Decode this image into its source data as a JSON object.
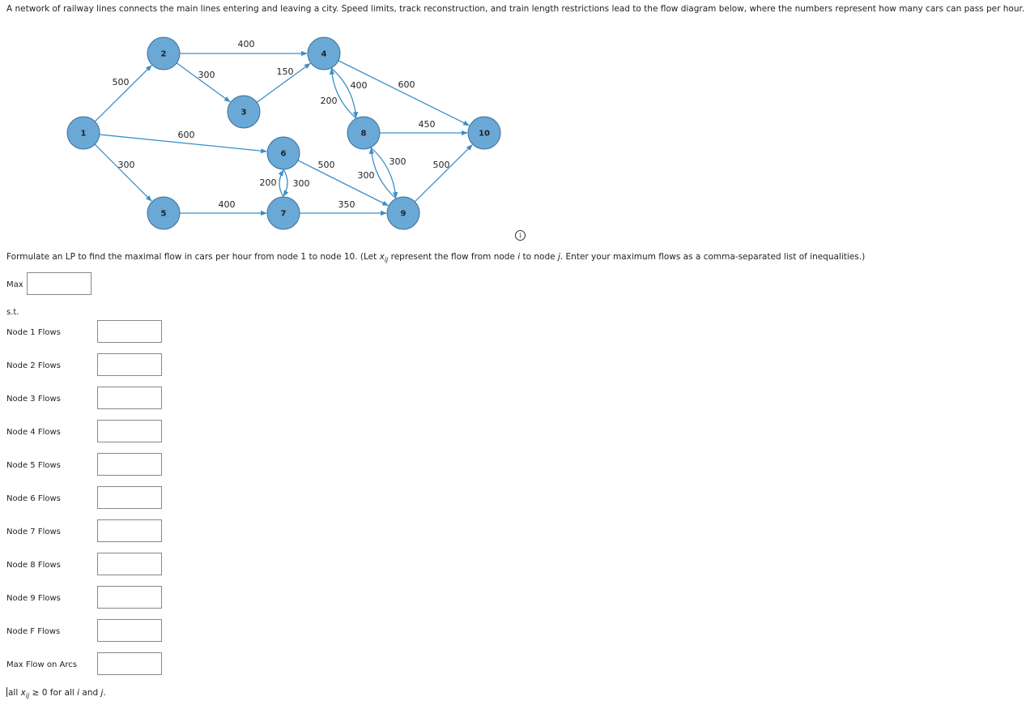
{
  "intro": "A network of railway lines connects the main lines entering and leaving a city. Speed limits, track reconstruction, and train length restrictions lead to the flow diagram below, where the numbers represent how many cars can pass per hour.",
  "colors": {
    "node_fill": "#6aa8d6",
    "node_stroke": "#3d6f96",
    "edge": "#3a8fc9"
  },
  "network": {
    "nodes": [
      {
        "id": "1"
      },
      {
        "id": "2"
      },
      {
        "id": "3"
      },
      {
        "id": "4"
      },
      {
        "id": "5"
      },
      {
        "id": "6"
      },
      {
        "id": "7"
      },
      {
        "id": "8"
      },
      {
        "id": "9"
      },
      {
        "id": "10"
      }
    ],
    "edges": [
      {
        "from": "1",
        "to": "2",
        "capacity": "500"
      },
      {
        "from": "1",
        "to": "5",
        "capacity": "300"
      },
      {
        "from": "1",
        "to": "6",
        "capacity": "600"
      },
      {
        "from": "2",
        "to": "4",
        "capacity": "400"
      },
      {
        "from": "2",
        "to": "3",
        "capacity": "300"
      },
      {
        "from": "3",
        "to": "4",
        "capacity": "150"
      },
      {
        "from": "4",
        "to": "8",
        "capacity": "400"
      },
      {
        "from": "8",
        "to": "4",
        "capacity": "200"
      },
      {
        "from": "4",
        "to": "10",
        "capacity": "600"
      },
      {
        "from": "5",
        "to": "7",
        "capacity": "400"
      },
      {
        "from": "6",
        "to": "7",
        "capacity": "300"
      },
      {
        "from": "7",
        "to": "6",
        "capacity": "200"
      },
      {
        "from": "6",
        "to": "9",
        "capacity": "500"
      },
      {
        "from": "7",
        "to": "9",
        "capacity": "350"
      },
      {
        "from": "8",
        "to": "10",
        "capacity": "450"
      },
      {
        "from": "8",
        "to": "9",
        "capacity": "300"
      },
      {
        "from": "9",
        "to": "8",
        "capacity": "300"
      },
      {
        "from": "9",
        "to": "10",
        "capacity": "500"
      }
    ]
  },
  "question": {
    "part1": "Formulate an LP to find the maximal flow in cars per hour from node 1 to node 10. (Let ",
    "var": "x",
    "var_sub": "ij",
    "part2": " represent the flow from node ",
    "i": "i",
    "part3": " to node ",
    "j": "j",
    "part4": ". Enter your maximum flows as a comma-separated list of inequalities.)"
  },
  "form": {
    "max_label": "Max",
    "st_label": "s.t.",
    "rows": [
      {
        "label": "Node 1 Flows",
        "value": ""
      },
      {
        "label": "Node 2 Flows",
        "value": ""
      },
      {
        "label": "Node 3 Flows",
        "value": ""
      },
      {
        "label": "Node 4 Flows",
        "value": ""
      },
      {
        "label": "Node 5 Flows",
        "value": ""
      },
      {
        "label": "Node 6 Flows",
        "value": ""
      },
      {
        "label": "Node 7 Flows",
        "value": ""
      },
      {
        "label": "Node 8 Flows",
        "value": ""
      },
      {
        "label": "Node 9 Flows",
        "value": ""
      },
      {
        "label": "Node F Flows",
        "value": ""
      },
      {
        "label": "Max Flow on Arcs",
        "value": ""
      }
    ]
  },
  "footer": {
    "pre": "all ",
    "var": "x",
    "var_sub": "ij",
    "mid": " ≥ 0 for all ",
    "i": "i",
    "and": " and ",
    "j": "j",
    "end": "."
  }
}
